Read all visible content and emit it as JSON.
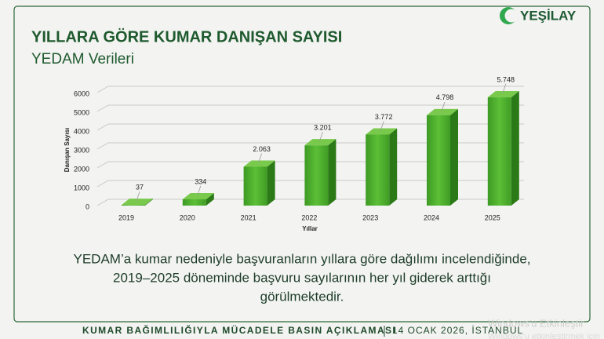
{
  "header": {
    "logo": "YEŞİLAY"
  },
  "chart_data": {
    "type": "bar",
    "title": "YILLARA GÖRE KUMAR DANIŞAN SAYISI",
    "subtitle": "YEDAM Verileri",
    "x_label": "Yıllar",
    "y_label": "Danışan Sayısı",
    "categories": [
      "2019",
      "2020",
      "2021",
      "2022",
      "2023",
      "2024",
      "2025"
    ],
    "values": [
      37,
      334,
      2063,
      3201,
      3772,
      4798,
      5748
    ],
    "value_labels": [
      "37",
      "334",
      "2.063",
      "3.201",
      "3.772",
      "4.798",
      "5.748"
    ],
    "color": "#4fae2e",
    "ylim": [
      0,
      6000
    ],
    "yticks": [
      0,
      1000,
      2000,
      3000,
      4000,
      5000,
      6000
    ],
    "grid": true
  },
  "description": [
    "YEDAM’a kumar nedeniyle başvuranların yıllara göre dağılımı incelendiğinde,",
    "2019–2025 döneminde başvuru sayılarının her yıl giderek arttığı",
    "görülmektedir."
  ],
  "footer": {
    "title": "KUMAR BAĞIMLILIĞIYLA MÜCADELE BASIN AÇIKLAMASI",
    "date": "14 OCAK 2026, İSTANBUL"
  },
  "watermark": [
    "Windows'u Etkinleştir",
    "Windows'u etkinleştirmek için"
  ]
}
